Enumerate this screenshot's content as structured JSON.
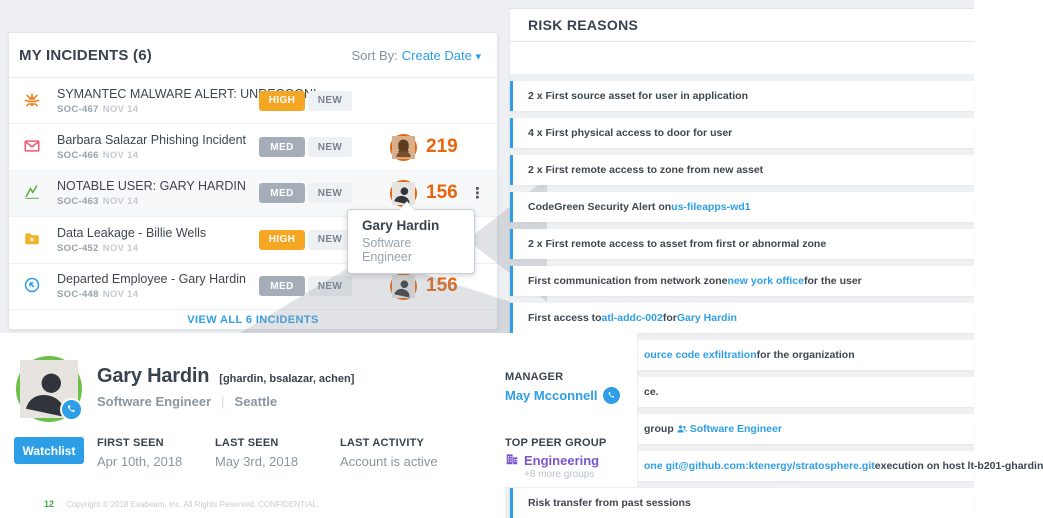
{
  "colors": {
    "accent_blue": "#2e9fe6",
    "score_orange": "#e8650d",
    "severity_high": "#f5a623",
    "severity_med": "#a5aeb8",
    "watchlist_green_ring": "#6cc04a",
    "peer_group_purple": "#7b55d0",
    "page_number_green": "#44a948"
  },
  "incidents_panel": {
    "title": "MY INCIDENTS (6)",
    "sort_by_label": "Sort By:",
    "sort_value": "Create Date",
    "sort_caret": "▾",
    "view_all_label": "VIEW ALL 6 INCIDENTS",
    "rows": [
      {
        "icon": "bug-icon",
        "title": "SYMANTEC MALWARE ALERT: UNRECOGNI...",
        "id": "SOC-467",
        "date": "NOV 14",
        "severity": "HIGH",
        "severity_color": "#f5a623",
        "status": "NEW",
        "score": "",
        "avatar": "",
        "highlight": false,
        "kebab": false
      },
      {
        "icon": "envelope-icon",
        "title": "Barbara Salazar Phishing Incident",
        "id": "SOC-466",
        "date": "NOV 14",
        "severity": "MED",
        "severity_color": "#a5aeb8",
        "status": "NEW",
        "score": "219",
        "avatar": "woman",
        "highlight": false,
        "kebab": false
      },
      {
        "icon": "notable-chart-icon",
        "title": "NOTABLE USER: GARY HARDIN",
        "id": "SOC-463",
        "date": "NOV 14",
        "severity": "MED",
        "severity_color": "#a5aeb8",
        "status": "NEW",
        "score": "156",
        "avatar": "man",
        "highlight": true,
        "kebab": true
      },
      {
        "icon": "data-leak-folder-icon",
        "title": "Data Leakage - Billie Wells",
        "id": "SOC-452",
        "date": "NOV 14",
        "severity": "HIGH",
        "severity_color": "#f5a623",
        "status": "NEW",
        "score": "",
        "avatar": "",
        "highlight": false,
        "kebab": false
      },
      {
        "icon": "departed-icon",
        "title": "Departed Employee - Gary Hardin",
        "id": "SOC-448",
        "date": "NOV 14",
        "severity": "MED",
        "severity_color": "#a5aeb8",
        "status": "NEW",
        "score": "156",
        "avatar": "man",
        "highlight": false,
        "kebab": false
      }
    ]
  },
  "tooltip": {
    "name": "Gary Hardin",
    "role": "Software Engineer"
  },
  "risk_panel": {
    "title": "RISK REASONS",
    "reasons": [
      {
        "clipped": false,
        "segments": [
          {
            "t": "2 x First source asset for user in application"
          }
        ]
      },
      {
        "clipped": false,
        "segments": [
          {
            "t": "4 x First physical access to door for user"
          }
        ]
      },
      {
        "clipped": false,
        "segments": [
          {
            "t": "2 x First remote access to zone from new asset"
          }
        ]
      },
      {
        "clipped": false,
        "segments": [
          {
            "t": "CodeGreen Security Alert on "
          },
          {
            "t": "us-fileapps-wd1",
            "link": true
          }
        ]
      },
      {
        "clipped": false,
        "segments": [
          {
            "t": "2 x First remote access to asset from first or abnormal zone"
          }
        ]
      },
      {
        "clipped": false,
        "segments": [
          {
            "t": "First communication from network zone "
          },
          {
            "t": "new york office",
            "link": true
          },
          {
            "t": " for the user"
          }
        ]
      },
      {
        "clipped": false,
        "segments": [
          {
            "t": "First access to "
          },
          {
            "t": "atl-addc-002",
            "link": true
          },
          {
            "t": " for "
          },
          {
            "t": "Gary Hardin",
            "link": true
          }
        ]
      },
      {
        "clipped": true,
        "segments": [
          {
            "t": "ource code exfiltration",
            "link": true
          },
          {
            "t": " for the organization"
          }
        ]
      },
      {
        "clipped": true,
        "segments": [
          {
            "t": "ce."
          }
        ]
      },
      {
        "clipped": true,
        "segments": [
          {
            "t": "group "
          },
          {
            "icon": "peer-group-icon"
          },
          {
            "t": " Software Engineer",
            "link": true
          }
        ]
      },
      {
        "clipped": true,
        "segments": [
          {
            "t": "one git@github.com:ktenergy/stratosphere.git",
            "link": true
          },
          {
            "t": " execution on host lt-b201-ghardin"
          }
        ]
      },
      {
        "clipped": false,
        "segments": [
          {
            "t": "Risk transfer from past sessions"
          }
        ]
      }
    ]
  },
  "profile": {
    "name": "Gary Hardin",
    "aliases": "[ghardin, bsalazar, achen]",
    "role": "Software Engineer",
    "divider": "|",
    "location": "Seattle",
    "watchlist_label": "Watchlist",
    "first_seen_label": "FIRST SEEN",
    "first_seen": "Apr 10th, 2018",
    "last_seen_label": "LAST SEEN",
    "last_seen": "May 3rd, 2018",
    "last_activity_label": "LAST ACTIVITY",
    "last_activity": "Account is active",
    "manager_label": "MANAGER",
    "manager": "May Mcconnell",
    "peer_group_label": "TOP PEER GROUP",
    "peer_group": "Engineering",
    "peer_group_more": "+8 more groups"
  },
  "footer": {
    "page_number": "12",
    "copyright": "Copyright © 2018 Exabeam, Inc. All Rights Reserved. CONFIDENTIAL."
  }
}
